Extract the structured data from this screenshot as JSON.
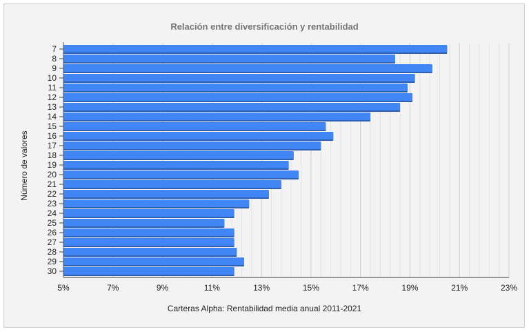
{
  "chart_data": {
    "type": "bar",
    "orientation": "horizontal",
    "title": "Relación entre diversificación y rentabilidad",
    "xlabel": "Carteras Alpha: Rentabilidad media anual 2011-2021",
    "ylabel": "Número de valores",
    "xlim": [
      5,
      23
    ],
    "x_ticks": [
      "5%",
      "7%",
      "9%",
      "11%",
      "13%",
      "15%",
      "17%",
      "19%",
      "21%",
      "23%"
    ],
    "grid": true,
    "bar_color": "#4285f4",
    "categories": [
      "7",
      "8",
      "9",
      "10",
      "11",
      "12",
      "13",
      "14",
      "15",
      "16",
      "17",
      "18",
      "19",
      "20",
      "21",
      "22",
      "23",
      "24",
      "25",
      "26",
      "27",
      "28",
      "29",
      "30"
    ],
    "values": [
      20.5,
      18.4,
      19.9,
      19.2,
      18.9,
      19.1,
      18.6,
      17.4,
      15.6,
      15.9,
      15.4,
      14.3,
      14.1,
      14.5,
      13.8,
      13.3,
      12.5,
      11.9,
      11.5,
      11.9,
      11.9,
      12.0,
      12.3,
      11.9
    ]
  }
}
